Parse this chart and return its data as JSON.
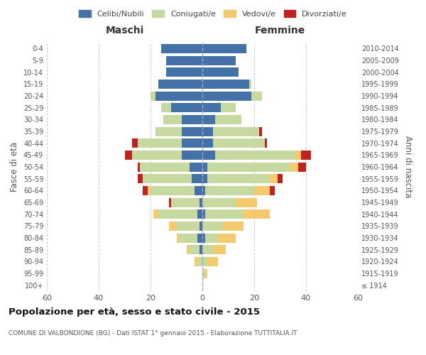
{
  "age_groups": [
    "100+",
    "95-99",
    "90-94",
    "85-89",
    "80-84",
    "75-79",
    "70-74",
    "65-69",
    "60-64",
    "55-59",
    "50-54",
    "45-49",
    "40-44",
    "35-39",
    "30-34",
    "25-29",
    "20-24",
    "15-19",
    "10-14",
    "5-9",
    "0-4"
  ],
  "birth_years": [
    "≤ 1914",
    "1915-1919",
    "1920-1924",
    "1925-1929",
    "1930-1934",
    "1935-1939",
    "1940-1944",
    "1945-1949",
    "1950-1954",
    "1955-1959",
    "1960-1964",
    "1965-1969",
    "1970-1974",
    "1975-1979",
    "1980-1984",
    "1985-1989",
    "1990-1994",
    "1995-1999",
    "2000-2004",
    "2005-2009",
    "2010-2014"
  ],
  "males": {
    "celibi": [
      0,
      0,
      0,
      1,
      2,
      1,
      2,
      1,
      3,
      4,
      5,
      8,
      8,
      8,
      8,
      12,
      18,
      17,
      14,
      14,
      16
    ],
    "coniugati": [
      0,
      0,
      2,
      4,
      7,
      9,
      15,
      11,
      17,
      19,
      19,
      19,
      17,
      10,
      7,
      4,
      2,
      0,
      0,
      0,
      0
    ],
    "vedovi": [
      0,
      0,
      1,
      1,
      1,
      3,
      2,
      0,
      1,
      0,
      0,
      0,
      0,
      0,
      0,
      0,
      0,
      0,
      0,
      0,
      0
    ],
    "divorziati": [
      0,
      0,
      0,
      0,
      0,
      0,
      0,
      1,
      2,
      2,
      1,
      3,
      2,
      0,
      0,
      0,
      0,
      0,
      0,
      0,
      0
    ]
  },
  "females": {
    "nubili": [
      0,
      0,
      0,
      0,
      1,
      0,
      1,
      0,
      1,
      2,
      2,
      5,
      4,
      4,
      5,
      7,
      19,
      18,
      14,
      13,
      17
    ],
    "coniugate": [
      0,
      1,
      2,
      4,
      5,
      8,
      15,
      13,
      19,
      24,
      32,
      31,
      20,
      18,
      10,
      6,
      4,
      1,
      0,
      0,
      0
    ],
    "vedove": [
      0,
      1,
      4,
      5,
      7,
      8,
      10,
      8,
      6,
      3,
      3,
      2,
      0,
      0,
      0,
      0,
      0,
      0,
      0,
      0,
      0
    ],
    "divorziate": [
      0,
      0,
      0,
      0,
      0,
      0,
      0,
      0,
      2,
      2,
      3,
      4,
      1,
      1,
      0,
      0,
      0,
      0,
      0,
      0,
      0
    ]
  },
  "colors": {
    "celibi_nubili": "#4472a8",
    "coniugati": "#c5d9a0",
    "vedovi": "#f5c96e",
    "divorziati": "#c0231f"
  },
  "xlim": 60,
  "title": "Popolazione per età, sesso e stato civile - 2015",
  "subtitle": "COMUNE DI VALBONDIONE (BG) - Dati ISTAT 1° gennaio 2015 - Elaborazione TUTTITALIA.IT",
  "ylabel_left": "Fasce di età",
  "ylabel_right": "Anni di nascita",
  "xlabel_male": "Maschi",
  "xlabel_female": "Femmine"
}
